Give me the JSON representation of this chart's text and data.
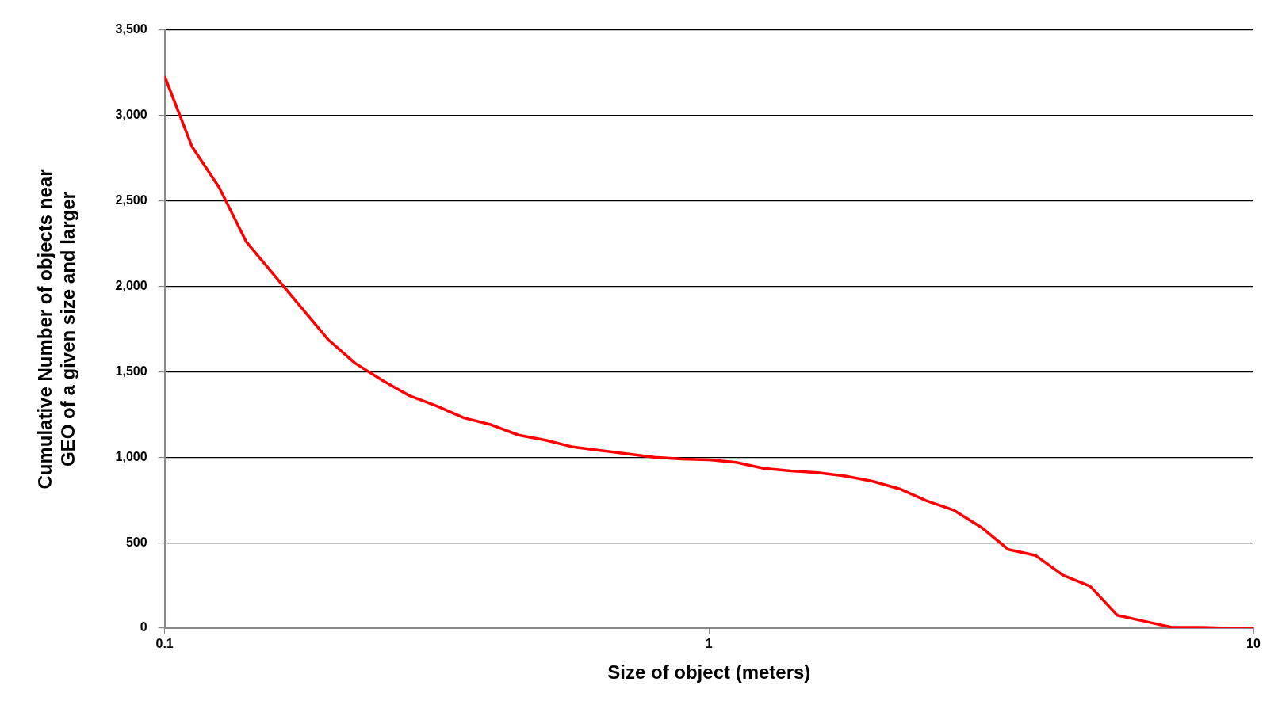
{
  "chart_data": {
    "type": "line",
    "xlabel": "Size of object (meters)",
    "ylabel": "Cumulative Number of objects near GEO of a given size and larger",
    "log": "x",
    "xlim": [
      0.1,
      10
    ],
    "xticks": [
      0.1,
      1,
      10
    ],
    "ylim": [
      0,
      3500
    ],
    "yticks": [
      {
        "value": 0,
        "label": "0"
      },
      {
        "value": 500,
        "label": "500"
      },
      {
        "value": 1000,
        "label": "1,000"
      },
      {
        "value": 1500,
        "label": "1,500"
      },
      {
        "value": 2000,
        "label": "2,000"
      },
      {
        "value": 2500,
        "label": "2,500"
      },
      {
        "value": 3000,
        "label": "3,000"
      },
      {
        "value": 3500,
        "label": "3,500"
      }
    ],
    "grid": "y",
    "legend": false,
    "marker": "none",
    "line_style": "solid",
    "x": [
      0.1,
      0.1122,
      0.1259,
      0.1413,
      0.1585,
      0.1778,
      0.1995,
      0.2239,
      0.2512,
      0.2818,
      0.3162,
      0.3548,
      0.3981,
      0.4467,
      0.5012,
      0.5623,
      0.631,
      0.7079,
      0.7943,
      0.8913,
      1,
      1.122,
      1.259,
      1.413,
      1.585,
      1.778,
      1.995,
      2.239,
      2.512,
      2.818,
      3.162,
      3.548,
      3.981,
      4.467,
      5.012,
      5.623,
      6.31,
      7.079,
      7.943,
      8.913,
      10
    ],
    "series": [
      {
        "color": "#ff0000",
        "values": [
          3230,
          2820,
          2580,
          2260,
          2070,
          1880,
          1690,
          1550,
          1450,
          1360,
          1300,
          1230,
          1190,
          1130,
          1100,
          1060,
          1040,
          1020,
          1000,
          990,
          985,
          970,
          935,
          920,
          910,
          890,
          860,
          815,
          745,
          690,
          590,
          460,
          425,
          310,
          245,
          75,
          40,
          5,
          5,
          0,
          0
        ]
      }
    ]
  }
}
